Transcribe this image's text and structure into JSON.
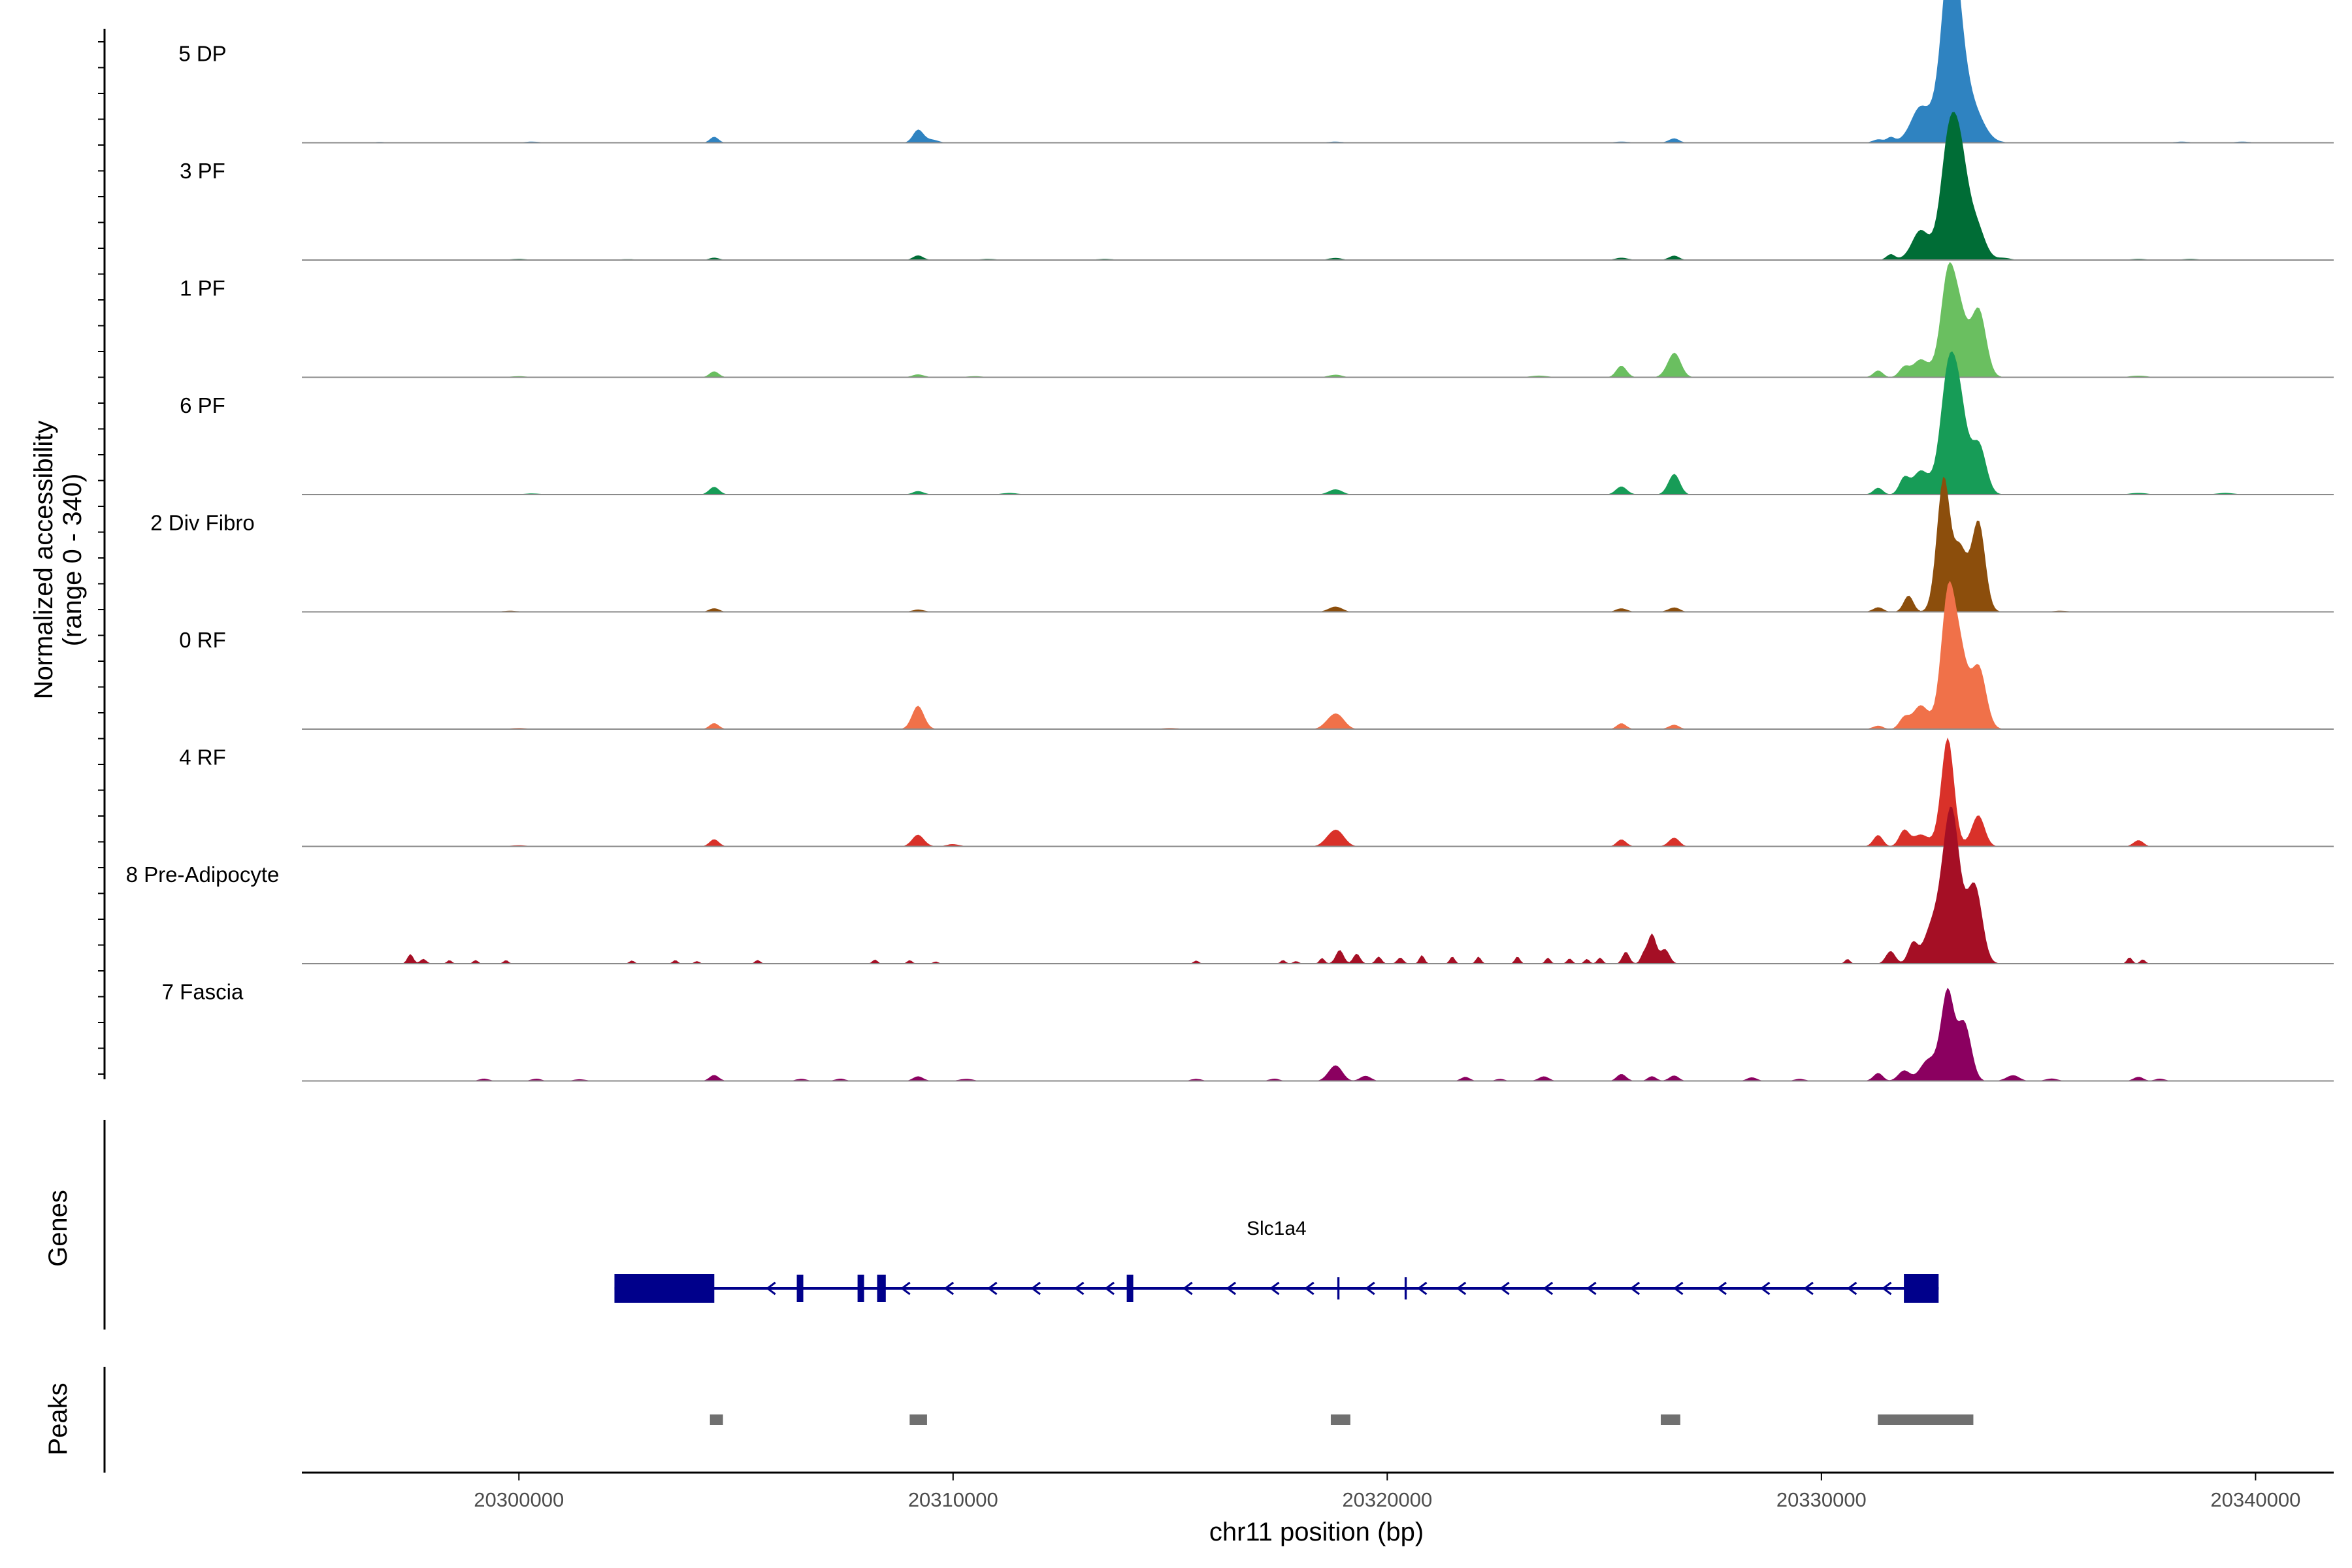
{
  "chart_data": {
    "type": "area",
    "title": "",
    "chromosome": "chr11",
    "xlabel": "chr11 position (bp)",
    "ylabel": "Normalized accessibility",
    "ylabel_range": "(range 0 - 340)",
    "xlim": [
      20295000,
      20341800
    ],
    "x_ticks": [
      20300000,
      20310000,
      20320000,
      20330000,
      20340000
    ],
    "x_tick_labels": [
      "20300000",
      "20310000",
      "20320000",
      "20330000",
      "20340000"
    ],
    "ylim": [
      0,
      340
    ],
    "series": [
      {
        "name": "5 DP",
        "color": "#2f83c1",
        "peaks": [
          [
            20296800,
            1.5,
            150
          ],
          [
            20300300,
            2,
            200
          ],
          [
            20304500,
            10,
            100
          ],
          [
            20309200,
            22,
            120
          ],
          [
            20309500,
            6,
            150
          ],
          [
            20318800,
            2,
            200
          ],
          [
            20325400,
            2,
            200
          ],
          [
            20326600,
            8,
            120
          ],
          [
            20331300,
            6,
            120
          ],
          [
            20331600,
            9,
            90
          ],
          [
            20332300,
            60,
            250
          ],
          [
            20332900,
            190,
            200
          ],
          [
            20333100,
            170,
            220
          ],
          [
            20333400,
            60,
            300
          ],
          [
            20338300,
            2,
            200
          ],
          [
            20339700,
            2,
            200
          ]
        ]
      },
      {
        "name": "3 PF",
        "color": "#006d36",
        "peaks": [
          [
            20300000,
            2,
            200
          ],
          [
            20302500,
            1.5,
            200
          ],
          [
            20304500,
            4,
            120
          ],
          [
            20309200,
            8,
            120
          ],
          [
            20310800,
            2,
            200
          ],
          [
            20313500,
            2,
            200
          ],
          [
            20318800,
            4,
            150
          ],
          [
            20325400,
            4,
            150
          ],
          [
            20326600,
            8,
            120
          ],
          [
            20331600,
            10,
            100
          ],
          [
            20332300,
            50,
            220
          ],
          [
            20332900,
            185,
            180
          ],
          [
            20333200,
            160,
            170
          ],
          [
            20333500,
            70,
            220
          ],
          [
            20334200,
            4,
            150
          ],
          [
            20337300,
            2,
            200
          ],
          [
            20338500,
            2,
            200
          ]
        ]
      },
      {
        "name": "1 PF",
        "color": "#6abf60",
        "peaks": [
          [
            20300000,
            2,
            200
          ],
          [
            20304500,
            10,
            110
          ],
          [
            20309200,
            5,
            140
          ],
          [
            20310500,
            2,
            200
          ],
          [
            20318800,
            5,
            150
          ],
          [
            20323500,
            3,
            200
          ],
          [
            20325400,
            20,
            120
          ],
          [
            20326600,
            45,
            150
          ],
          [
            20331300,
            12,
            110
          ],
          [
            20331900,
            18,
            110
          ],
          [
            20332300,
            30,
            200
          ],
          [
            20332900,
            170,
            170
          ],
          [
            20333200,
            100,
            160
          ],
          [
            20333600,
            120,
            180
          ],
          [
            20337300,
            3,
            200
          ]
        ]
      },
      {
        "name": "6 PF",
        "color": "#179c57",
        "peaks": [
          [
            20300300,
            2,
            200
          ],
          [
            20304500,
            13,
            120
          ],
          [
            20309200,
            6,
            130
          ],
          [
            20311300,
            3,
            180
          ],
          [
            20318800,
            10,
            150
          ],
          [
            20325400,
            14,
            130
          ],
          [
            20326600,
            38,
            130
          ],
          [
            20331300,
            12,
            110
          ],
          [
            20331900,
            30,
            110
          ],
          [
            20332300,
            40,
            200
          ],
          [
            20332900,
            200,
            180
          ],
          [
            20333200,
            145,
            160
          ],
          [
            20333600,
            90,
            180
          ],
          [
            20337300,
            3,
            200
          ],
          [
            20339300,
            3,
            200
          ]
        ]
      },
      {
        "name": "2 Div Fibro",
        "color": "#8c4e0c",
        "peaks": [
          [
            20299800,
            2,
            200
          ],
          [
            20304500,
            6,
            120
          ],
          [
            20309200,
            4,
            140
          ],
          [
            20318800,
            10,
            150
          ],
          [
            20325400,
            6,
            130
          ],
          [
            20326600,
            8,
            130
          ],
          [
            20331300,
            8,
            120
          ],
          [
            20332000,
            30,
            110
          ],
          [
            20332800,
            240,
            150
          ],
          [
            20333200,
            110,
            150
          ],
          [
            20333600,
            160,
            160
          ],
          [
            20335500,
            2,
            200
          ]
        ]
      },
      {
        "name": "0 RF",
        "color": "#f07149",
        "peaks": [
          [
            20300000,
            2,
            200
          ],
          [
            20304500,
            10,
            110
          ],
          [
            20309200,
            40,
            140
          ],
          [
            20315000,
            2,
            200
          ],
          [
            20318800,
            30,
            180
          ],
          [
            20325400,
            10,
            110
          ],
          [
            20326600,
            8,
            120
          ],
          [
            20331300,
            6,
            120
          ],
          [
            20331900,
            20,
            110
          ],
          [
            20332300,
            40,
            200
          ],
          [
            20332900,
            220,
            160
          ],
          [
            20333200,
            130,
            160
          ],
          [
            20333600,
            110,
            180
          ]
        ]
      },
      {
        "name": "4 RF",
        "color": "#d93129",
        "peaks": [
          [
            20300000,
            2,
            200
          ],
          [
            20304500,
            12,
            110
          ],
          [
            20309200,
            20,
            140
          ],
          [
            20310000,
            4,
            150
          ],
          [
            20318800,
            32,
            180
          ],
          [
            20325400,
            12,
            110
          ],
          [
            20326600,
            16,
            120
          ],
          [
            20331300,
            20,
            110
          ],
          [
            20331900,
            30,
            110
          ],
          [
            20332300,
            20,
            200
          ],
          [
            20332900,
            185,
            150
          ],
          [
            20333600,
            55,
            150
          ],
          [
            20337300,
            12,
            110
          ]
        ]
      },
      {
        "name": "8 Pre-Adipocyte",
        "color": "#a50f25",
        "peaks": [
          [
            20297500,
            16,
            70
          ],
          [
            20297800,
            9,
            70
          ],
          [
            20298400,
            6,
            60
          ],
          [
            20299000,
            6,
            60
          ],
          [
            20299700,
            6,
            60
          ],
          [
            20302600,
            6,
            60
          ],
          [
            20303600,
            6,
            60
          ],
          [
            20304100,
            5,
            60
          ],
          [
            20305500,
            7,
            60
          ],
          [
            20308200,
            7,
            60
          ],
          [
            20309600,
            4,
            60
          ],
          [
            20309000,
            6,
            60
          ],
          [
            20315600,
            6,
            60
          ],
          [
            20317600,
            6,
            60
          ],
          [
            20317900,
            5,
            60
          ],
          [
            20318500,
            10,
            60
          ],
          [
            20318900,
            25,
            90
          ],
          [
            20319300,
            18,
            80
          ],
          [
            20319800,
            12,
            70
          ],
          [
            20320300,
            12,
            70
          ],
          [
            20320800,
            15,
            60
          ],
          [
            20321500,
            12,
            60
          ],
          [
            20322100,
            12,
            60
          ],
          [
            20323000,
            12,
            60
          ],
          [
            20323700,
            10,
            60
          ],
          [
            20324200,
            10,
            60
          ],
          [
            20324600,
            8,
            60
          ],
          [
            20324900,
            12,
            60
          ],
          [
            20325500,
            22,
            80
          ],
          [
            20325900,
            15,
            70
          ],
          [
            20326100,
            50,
            100
          ],
          [
            20326400,
            28,
            100
          ],
          [
            20330600,
            8,
            60
          ],
          [
            20331600,
            22,
            110
          ],
          [
            20332100,
            35,
            110
          ],
          [
            20332600,
            80,
            200
          ],
          [
            20332900,
            165,
            160
          ],
          [
            20333100,
            140,
            150
          ],
          [
            20333500,
            150,
            180
          ],
          [
            20337100,
            12,
            60
          ],
          [
            20337400,
            8,
            60
          ]
        ]
      },
      {
        "name": "7 Fascia",
        "color": "#8b0060",
        "peaks": [
          [
            20299200,
            4,
            120
          ],
          [
            20300400,
            4,
            120
          ],
          [
            20301400,
            3,
            150
          ],
          [
            20304500,
            10,
            110
          ],
          [
            20306500,
            4,
            120
          ],
          [
            20307400,
            4,
            120
          ],
          [
            20309200,
            8,
            120
          ],
          [
            20310300,
            4,
            150
          ],
          [
            20315600,
            4,
            120
          ],
          [
            20317400,
            4,
            120
          ],
          [
            20318800,
            30,
            150
          ],
          [
            20319500,
            10,
            120
          ],
          [
            20321800,
            8,
            100
          ],
          [
            20322600,
            4,
            100
          ],
          [
            20323600,
            8,
            120
          ],
          [
            20325400,
            12,
            110
          ],
          [
            20326100,
            8,
            100
          ],
          [
            20326600,
            10,
            110
          ],
          [
            20328400,
            6,
            120
          ],
          [
            20329500,
            4,
            120
          ],
          [
            20331300,
            14,
            110
          ],
          [
            20331900,
            20,
            130
          ],
          [
            20332500,
            40,
            200
          ],
          [
            20332900,
            150,
            150
          ],
          [
            20333300,
            110,
            150
          ],
          [
            20334400,
            10,
            150
          ],
          [
            20335300,
            4,
            150
          ],
          [
            20337300,
            8,
            110
          ],
          [
            20337800,
            4,
            120
          ]
        ]
      }
    ],
    "genes": {
      "title": "Genes",
      "name": "Slc1a4",
      "strand": "-",
      "color": "#00008b",
      "start": 20302200,
      "end": 20332700,
      "exons": [
        [
          20302200,
          20304500,
          "utr"
        ],
        [
          20306400,
          20306550,
          "cds"
        ],
        [
          20307800,
          20307950,
          "cds"
        ],
        [
          20308250,
          20308450,
          "cds"
        ],
        [
          20314000,
          20314150,
          "cds"
        ],
        [
          20318850,
          20318900,
          "cds"
        ],
        [
          20320400,
          20320450,
          "cds"
        ],
        [
          20331900,
          20332700,
          "utr"
        ]
      ],
      "arrows": [
        20305800,
        20308900,
        20309900,
        20310900,
        20311900,
        20312900,
        20313600,
        20315400,
        20316400,
        20317400,
        20318200,
        20319600,
        20320800,
        20321700,
        20322700,
        20323700,
        20324700,
        20325700,
        20326700,
        20327700,
        20328700,
        20329700,
        20330700,
        20331500
      ]
    },
    "peaks_track": {
      "title": "Peaks",
      "color": "#707070",
      "regions": [
        [
          20304400,
          20304700
        ],
        [
          20309000,
          20309400
        ],
        [
          20318700,
          20319150
        ],
        [
          20326300,
          20326750
        ],
        [
          20331300,
          20333500
        ]
      ]
    }
  }
}
